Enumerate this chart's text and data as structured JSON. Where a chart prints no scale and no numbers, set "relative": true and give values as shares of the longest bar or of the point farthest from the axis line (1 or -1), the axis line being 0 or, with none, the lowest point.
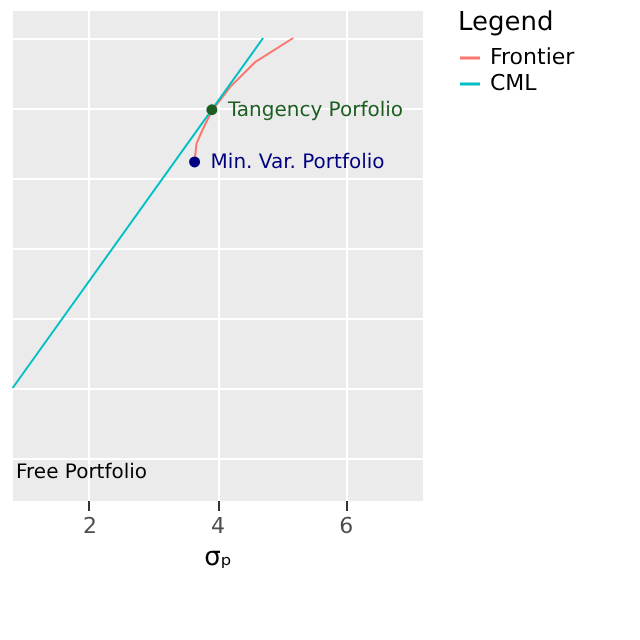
{
  "chart_data": {
    "type": "line",
    "xlabel": "σₚ",
    "legend_title": "Legend",
    "relative": true,
    "xlim": [
      0.8,
      7.2
    ],
    "xticks": [
      2,
      4,
      6
    ],
    "grid": true,
    "legend": "right",
    "tick_labels": "x",
    "series": [
      {
        "name": "Frontier",
        "color": "#f8766d",
        "x": [
          3.65,
          3.68,
          3.78,
          3.92,
          4.2,
          4.6,
          5.19
        ],
        "values": [
          0.646,
          0.698,
          0.74,
          0.792,
          0.859,
          0.932,
          1
        ]
      },
      {
        "name": "CML",
        "color": "#00bfc4",
        "x": [
          0.81,
          4.72
        ],
        "values": [
          0,
          1
        ]
      },
      {
        "type": "scatter",
        "x": [
          3.92,
          3.65
        ],
        "values": [
          0.795,
          0.646
        ],
        "colors": [
          "#1b5e20",
          "#000080"
        ]
      }
    ],
    "annotations": [
      {
        "text": "Tangency Porfolio",
        "x": 3.92,
        "y": 0.795
      },
      {
        "text": "Min. Var. Portfolio",
        "x": 3.65,
        "y": 0.646
      },
      "Free Portfolio"
    ]
  }
}
